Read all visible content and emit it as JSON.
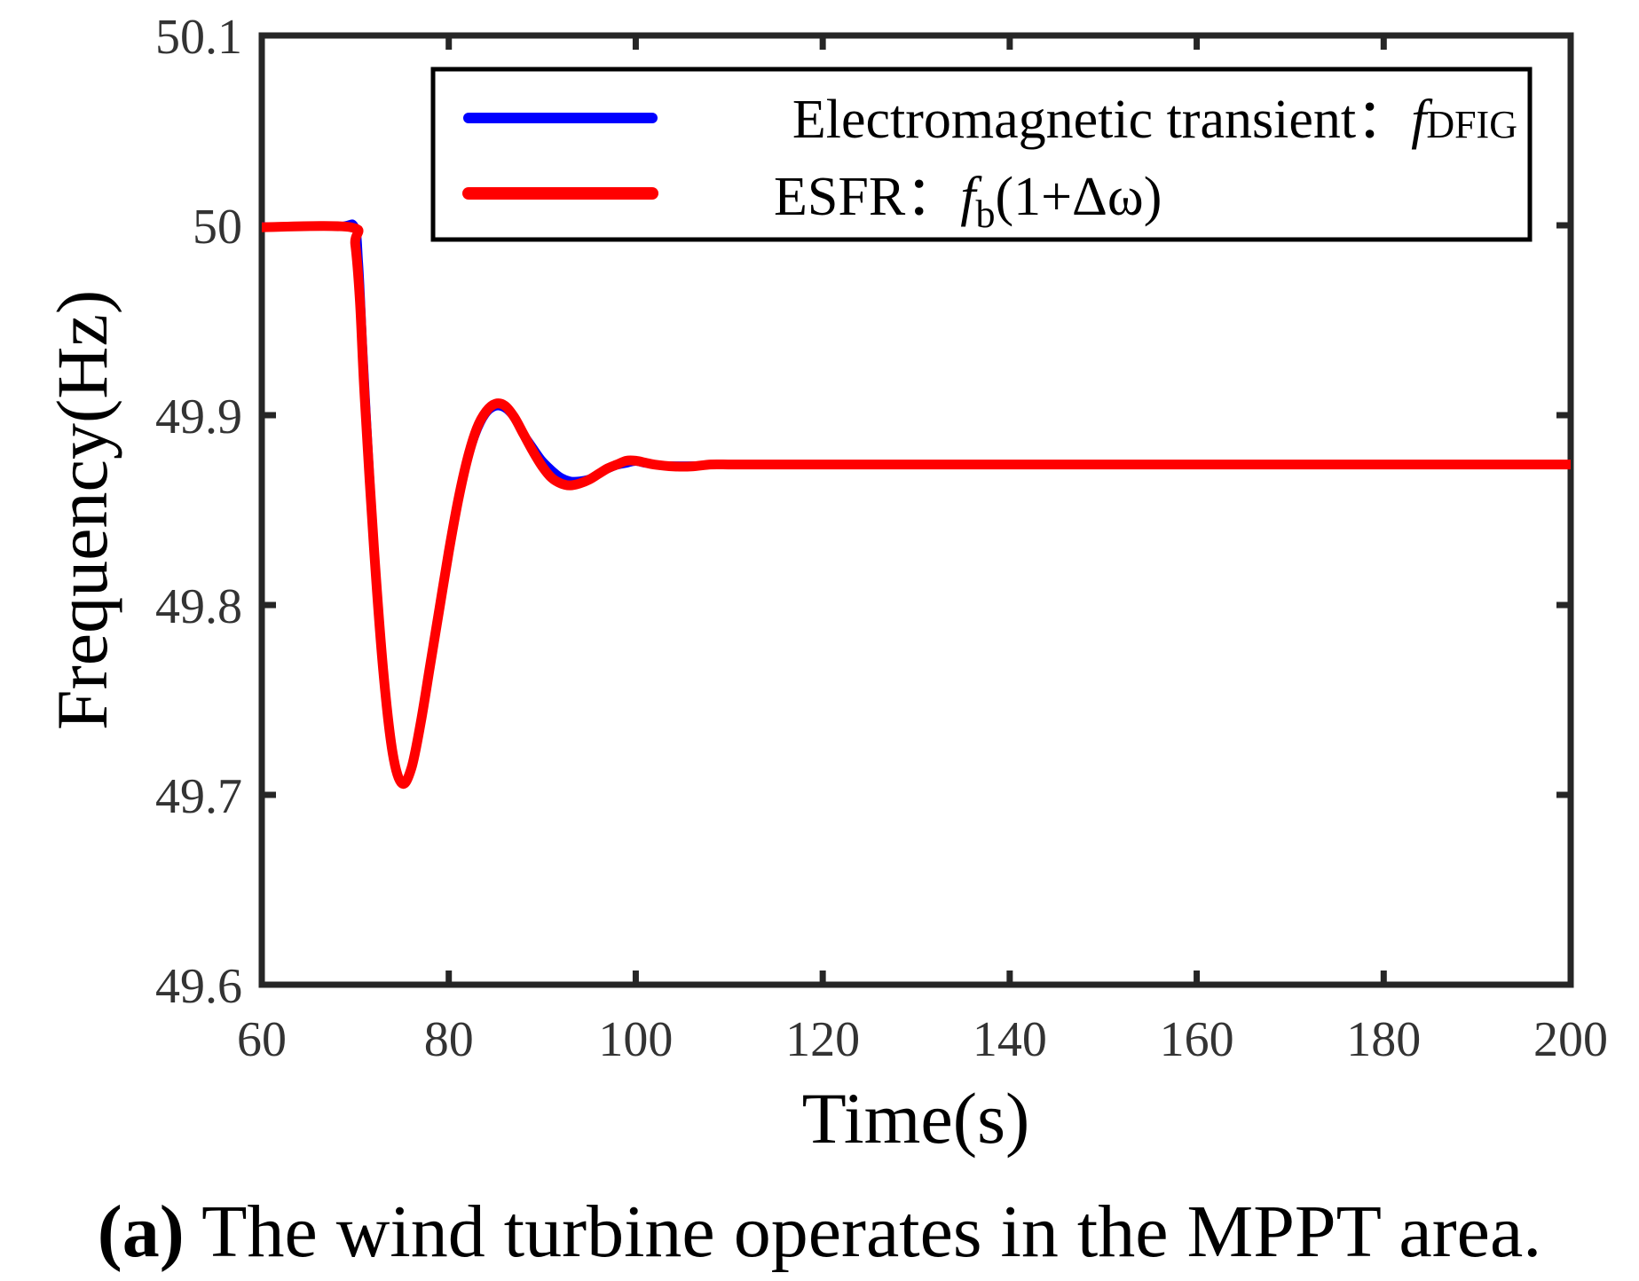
{
  "chart_data": {
    "type": "line",
    "title": "",
    "xlabel": "Time(s)",
    "ylabel": "Frequency(Hz)",
    "xlim": [
      60,
      200
    ],
    "ylim": [
      49.6,
      50.1
    ],
    "xticks": [
      60,
      80,
      100,
      120,
      140,
      160,
      180,
      200
    ],
    "yticks": [
      49.6,
      49.7,
      49.8,
      49.9,
      50,
      50.1
    ],
    "xtick_labels": [
      "60",
      "80",
      "100",
      "120",
      "140",
      "160",
      "180",
      "200"
    ],
    "ytick_labels": [
      "49.6",
      "49.7",
      "49.8",
      "49.9",
      "50",
      "50.1"
    ],
    "grid": false,
    "legend_position": "top-right",
    "series": [
      {
        "name": "Electromagnetic transient",
        "legend_label": "Electromagnetic transient：",
        "legend_symbol": "f",
        "legend_subscript": "DFIG",
        "color": "#0000ff",
        "x": [
          60,
          68,
          70,
          70.5,
          71,
          72,
          73,
          74,
          75,
          76,
          77,
          78,
          79,
          80,
          81,
          82,
          83,
          84,
          85,
          86,
          87,
          88,
          89,
          90,
          91,
          92,
          93,
          94,
          95,
          96,
          97,
          98,
          99,
          100,
          101,
          102,
          104,
          106,
          108,
          110,
          112,
          114,
          116,
          118,
          120,
          125,
          130,
          140,
          160,
          180,
          200
        ],
        "y": [
          50,
          50,
          50,
          49.98,
          49.93,
          49.84,
          49.77,
          49.725,
          49.707,
          49.712,
          49.735,
          49.765,
          49.795,
          49.825,
          49.852,
          49.874,
          49.89,
          49.9,
          49.904,
          49.903,
          49.898,
          49.891,
          49.884,
          49.877,
          49.872,
          49.868,
          49.866,
          49.866,
          49.867,
          49.869,
          49.871,
          49.873,
          49.874,
          49.875,
          49.874,
          49.874,
          49.874,
          49.874,
          49.874,
          49.874,
          49.874,
          49.874,
          49.874,
          49.874,
          49.874,
          49.874,
          49.874,
          49.874,
          49.874,
          49.874,
          49.874
        ]
      },
      {
        "name": "ESFR",
        "legend_label": "ESFR：",
        "legend_symbol": "f",
        "legend_subscript": "b",
        "legend_formula": "(1+Δω)",
        "color": "#ff0000",
        "x": [
          60,
          69.5,
          70,
          70.5,
          71,
          72,
          73,
          74,
          75,
          76,
          77,
          78,
          79,
          80,
          81,
          82,
          83,
          84,
          85,
          86,
          87,
          88,
          89,
          90,
          91,
          92,
          93,
          94,
          95,
          96,
          97,
          98,
          99,
          100,
          101,
          102,
          104,
          106,
          108,
          110,
          112,
          114,
          116,
          118,
          120,
          125,
          130,
          140,
          160,
          180,
          200
        ],
        "y": [
          49.999,
          49.999,
          49.99,
          49.96,
          49.91,
          49.83,
          49.765,
          49.722,
          49.706,
          49.714,
          49.738,
          49.768,
          49.798,
          49.828,
          49.855,
          49.877,
          49.893,
          49.902,
          49.906,
          49.905,
          49.899,
          49.89,
          49.881,
          49.873,
          49.867,
          49.864,
          49.863,
          49.864,
          49.866,
          49.869,
          49.872,
          49.874,
          49.876,
          49.876,
          49.875,
          49.874,
          49.873,
          49.873,
          49.874,
          49.874,
          49.874,
          49.874,
          49.874,
          49.874,
          49.874,
          49.874,
          49.874,
          49.874,
          49.874,
          49.874,
          49.874
        ]
      }
    ]
  },
  "caption": {
    "label": "(a)",
    "text": "The wind turbine operates in the MPPT area."
  }
}
